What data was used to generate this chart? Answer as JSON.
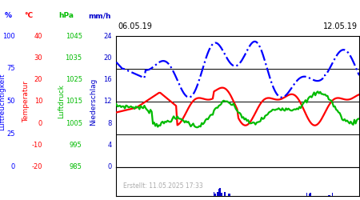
{
  "date_left": "06.05.19",
  "date_right": "12.05.19",
  "created": "Erstellt: 11.05.2025 17:33",
  "background_color": "#ffffff",
  "colors": {
    "humidity": "#0000ff",
    "temperature": "#ff0000",
    "pressure": "#00bb00",
    "precipitation": "#0000cc"
  },
  "label_colors": {
    "humidity": "#0000ff",
    "temperature": "#ff0000",
    "pressure": "#00bb00",
    "precipitation": "#0000cc"
  },
  "y_ticks_humidity": [
    0,
    25,
    50,
    75,
    100
  ],
  "y_ticks_temp": [
    -20,
    -10,
    0,
    10,
    20,
    30,
    40
  ],
  "y_ticks_pressure": [
    985,
    995,
    1005,
    1015,
    1025,
    1035,
    1045
  ],
  "y_ticks_precip": [
    0,
    4,
    8,
    12,
    16,
    20,
    24
  ],
  "hum_range": [
    0,
    100
  ],
  "temp_range": [
    -20,
    40
  ],
  "pres_range": [
    985,
    1045
  ],
  "precip_range": [
    0,
    24
  ],
  "n_points": 200,
  "line_linewidth": 1.6,
  "grid_color": "#000000",
  "grid_linewidth": 0.7,
  "unit_labels": [
    "%",
    "°C",
    "hPa",
    "mm/h"
  ],
  "axis_labels": [
    "Luftfeuchtigkeit",
    "Temperatur",
    "Luftdruck",
    "Niederschlag"
  ],
  "fontsizes": {
    "unit": 6.5,
    "tick": 6.0,
    "date": 7.0,
    "label_rotated": 6.5,
    "created": 5.5
  }
}
